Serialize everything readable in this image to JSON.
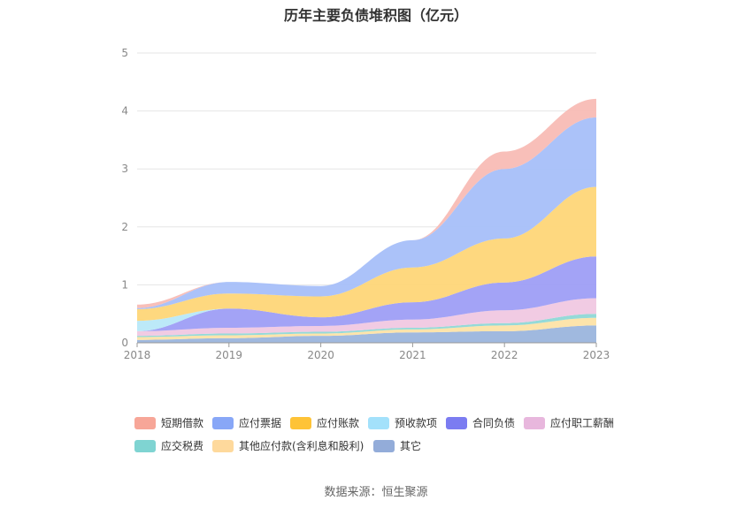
{
  "chart_data": {
    "type": "area",
    "stacked": true,
    "title": "历年主要负债堆积图（亿元）",
    "x": [
      "2018",
      "2019",
      "2020",
      "2021",
      "2022",
      "2023"
    ],
    "ylim": [
      0,
      5
    ],
    "yticks": [
      "0",
      "1",
      "2",
      "3",
      "4",
      "5"
    ],
    "grid": true,
    "legend_position": "bottom",
    "series": [
      {
        "name": "其它",
        "color": "#9bb5dd",
        "values": [
          0.05,
          0.08,
          0.12,
          0.18,
          0.2,
          0.3
        ]
      },
      {
        "name": "其他应付款(含利息和股利)",
        "color": "#fde3a7",
        "values": [
          0.05,
          0.05,
          0.04,
          0.05,
          0.1,
          0.13
        ]
      },
      {
        "name": "应交税费",
        "color": "#8fd8d6",
        "values": [
          0.02,
          0.03,
          0.03,
          0.03,
          0.04,
          0.07
        ]
      },
      {
        "name": "应付职工薪酬",
        "color": "#f0c8e2",
        "values": [
          0.08,
          0.1,
          0.1,
          0.14,
          0.22,
          0.27
        ]
      },
      {
        "name": "合同负债",
        "color": "#9e9ef5",
        "values": [
          0.0,
          0.33,
          0.15,
          0.3,
          0.48,
          0.72
        ]
      },
      {
        "name": "预收款项",
        "color": "#b8e8f8",
        "values": [
          0.18,
          0.0,
          0.0,
          0.0,
          0.0,
          0.0
        ]
      },
      {
        "name": "应付账款",
        "color": "#fed678",
        "values": [
          0.2,
          0.26,
          0.36,
          0.6,
          0.76,
          1.2
        ]
      },
      {
        "name": "应付票据",
        "color": "#a6bff9",
        "values": [
          0.02,
          0.2,
          0.18,
          0.47,
          1.2,
          1.2
        ]
      },
      {
        "name": "短期借款",
        "color": "#f8bcb5",
        "values": [
          0.06,
          0.0,
          0.0,
          0.0,
          0.3,
          0.32
        ]
      }
    ]
  },
  "legend": {
    "items": [
      {
        "label": "短期借款",
        "color": "#f7a698"
      },
      {
        "label": "应付票据",
        "color": "#88a7f7"
      },
      {
        "label": "应付账款",
        "color": "#fec337"
      },
      {
        "label": "预收款项",
        "color": "#a3e1fb"
      },
      {
        "label": "合同负债",
        "color": "#7b7cf1"
      },
      {
        "label": "应付职工薪酬",
        "color": "#e8b7dd"
      },
      {
        "label": "应交税费",
        "color": "#7fd4d2"
      },
      {
        "label": "其他应付款(含利息和股利)",
        "color": "#fed99c"
      },
      {
        "label": "其它",
        "color": "#93acd9"
      }
    ]
  },
  "source": "数据来源：恒生聚源"
}
